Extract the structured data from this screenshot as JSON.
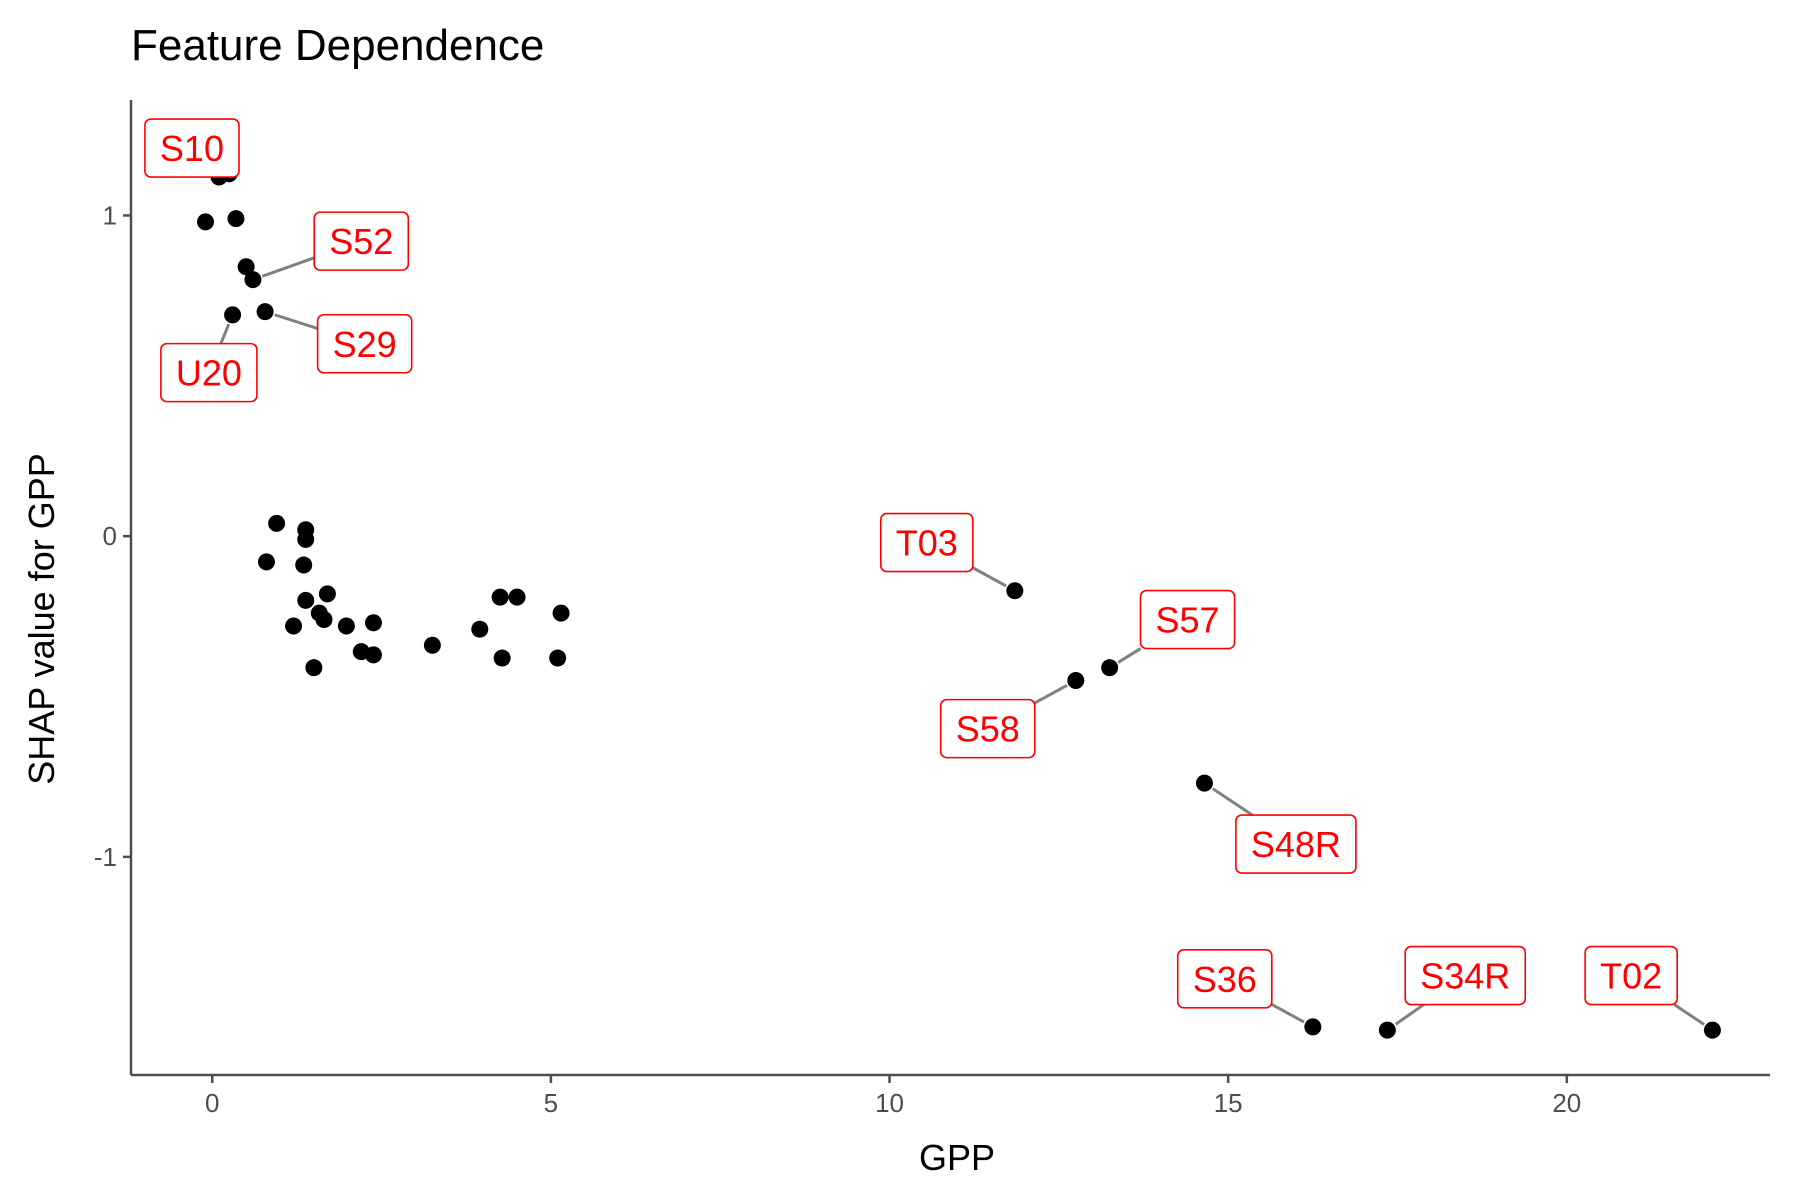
{
  "chart_data": {
    "type": "scatter",
    "title": "Feature Dependence",
    "xlabel": "GPP",
    "ylabel": "SHAP value for GPP",
    "xlim": [
      -1.2,
      23.0
    ],
    "ylim": [
      -1.68,
      1.36
    ],
    "xticks": [
      0,
      5,
      10,
      15,
      20
    ],
    "yticks": [
      1,
      0,
      -1
    ],
    "xtick_labels": [
      "0",
      "5",
      "10",
      "15",
      "20"
    ],
    "ytick_labels": [
      "1",
      "0",
      "-1"
    ],
    "grid": false,
    "legend": "none",
    "point_color": "#000000",
    "label_color": "#ff0000",
    "leader_color": "#808080",
    "points": [
      {
        "x": -0.1,
        "y": 0.98
      },
      {
        "x": 0.1,
        "y": 1.12
      },
      {
        "x": 0.25,
        "y": 1.13
      },
      {
        "x": 0.35,
        "y": 0.99
      },
      {
        "x": 0.5,
        "y": 0.84
      },
      {
        "x": 0.6,
        "y": 0.8
      },
      {
        "x": 0.3,
        "y": 0.69
      },
      {
        "x": 0.78,
        "y": 0.7
      },
      {
        "x": 0.8,
        "y": -0.08
      },
      {
        "x": 0.95,
        "y": 0.04
      },
      {
        "x": 1.2,
        "y": -0.28
      },
      {
        "x": 1.35,
        "y": -0.09
      },
      {
        "x": 1.38,
        "y": 0.02
      },
      {
        "x": 1.38,
        "y": -0.01
      },
      {
        "x": 1.38,
        "y": -0.2
      },
      {
        "x": 1.5,
        "y": -0.41
      },
      {
        "x": 1.58,
        "y": -0.24
      },
      {
        "x": 1.65,
        "y": -0.26
      },
      {
        "x": 1.7,
        "y": -0.18
      },
      {
        "x": 1.98,
        "y": -0.28
      },
      {
        "x": 2.2,
        "y": -0.36
      },
      {
        "x": 2.38,
        "y": -0.27
      },
      {
        "x": 2.38,
        "y": -0.37
      },
      {
        "x": 3.25,
        "y": -0.34
      },
      {
        "x": 3.95,
        "y": -0.29
      },
      {
        "x": 4.25,
        "y": -0.19
      },
      {
        "x": 4.28,
        "y": -0.38
      },
      {
        "x": 4.5,
        "y": -0.19
      },
      {
        "x": 5.1,
        "y": -0.38
      },
      {
        "x": 5.15,
        "y": -0.24
      },
      {
        "x": 11.85,
        "y": -0.17
      },
      {
        "x": 12.75,
        "y": -0.45
      },
      {
        "x": 13.25,
        "y": -0.41
      },
      {
        "x": 14.65,
        "y": -0.77
      },
      {
        "x": 16.25,
        "y": -1.53
      },
      {
        "x": 17.35,
        "y": -1.54
      },
      {
        "x": 22.15,
        "y": -1.54
      }
    ],
    "annotations": [
      {
        "text": "S10",
        "px": 0.1,
        "py": 1.12,
        "lx": -0.3,
        "ly": 1.21
      },
      {
        "text": "S52",
        "px": 0.6,
        "py": 0.8,
        "lx": 2.2,
        "ly": 0.92
      },
      {
        "text": "S29",
        "px": 0.78,
        "py": 0.7,
        "lx": 2.25,
        "ly": 0.6
      },
      {
        "text": "U20",
        "px": 0.3,
        "py": 0.69,
        "lx": -0.05,
        "ly": 0.51
      },
      {
        "text": "T03",
        "px": 11.85,
        "py": -0.17,
        "lx": 10.55,
        "ly": -0.02
      },
      {
        "text": "S57",
        "px": 13.25,
        "py": -0.41,
        "lx": 14.4,
        "ly": -0.26
      },
      {
        "text": "S58",
        "px": 12.75,
        "py": -0.45,
        "lx": 11.45,
        "ly": -0.6
      },
      {
        "text": "S48R",
        "px": 14.65,
        "py": -0.77,
        "lx": 16.0,
        "ly": -0.96
      },
      {
        "text": "S36",
        "px": 16.25,
        "py": -1.53,
        "lx": 14.95,
        "ly": -1.38
      },
      {
        "text": "S34R",
        "px": 17.35,
        "py": -1.54,
        "lx": 18.5,
        "ly": -1.37
      },
      {
        "text": "T02",
        "px": 22.15,
        "py": -1.54,
        "lx": 20.95,
        "ly": -1.37
      }
    ]
  }
}
